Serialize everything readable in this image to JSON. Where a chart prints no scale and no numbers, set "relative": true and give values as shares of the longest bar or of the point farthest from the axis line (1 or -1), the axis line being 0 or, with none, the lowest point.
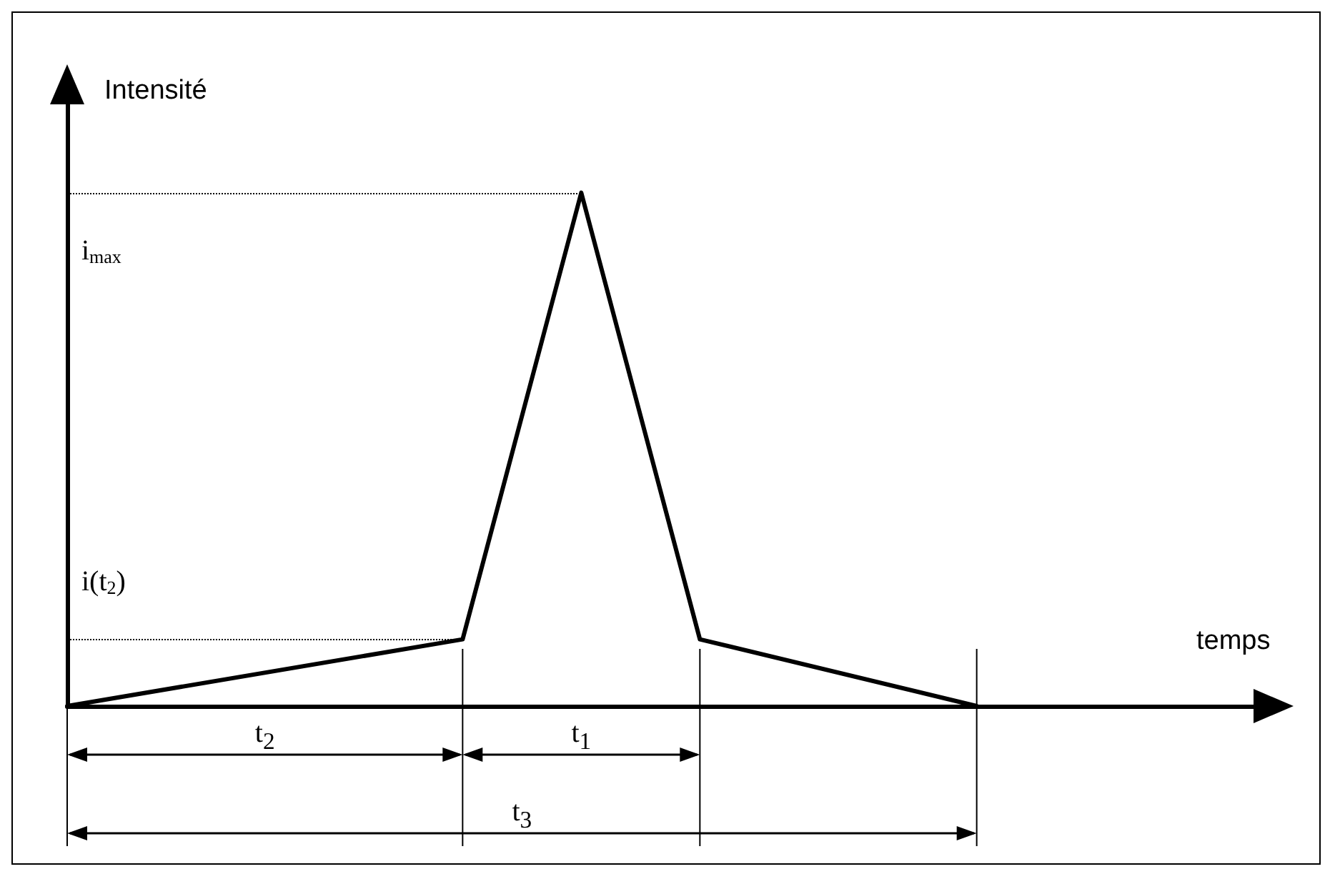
{
  "chart_data": {
    "type": "line",
    "relative": true,
    "xlabel": "temps",
    "ylabel": "Intensité",
    "color": "#000000",
    "marker": "none",
    "line_style": "solid",
    "grid": false,
    "categories": [
      null,
      null,
      null,
      null,
      null,
      null,
      null,
      null,
      null,
      null,
      null,
      null,
      null,
      null,
      null,
      null,
      null,
      null,
      null,
      null,
      null,
      null,
      null,
      null,
      null,
      null,
      null,
      null,
      null,
      null,
      null
    ],
    "values": [
      0,
      null,
      null,
      null,
      null,
      null,
      null,
      null,
      null,
      null,
      0.13,
      null,
      null,
      1,
      null,
      null,
      0.13,
      null,
      null,
      null,
      null,
      null,
      null,
      0,
      null,
      null,
      null,
      null,
      null,
      null,
      null
    ],
    "ref_lines": [
      {
        "axis": "y",
        "value": 1,
        "label": "i$_{max}$",
        "line_style": "dotted"
      },
      {
        "axis": "y",
        "value": 0.13,
        "label": "i(t$_{2}$)",
        "line_style": "dotted"
      }
    ],
    "annotations": [
      "t$_{2}$",
      "t$_{1}$",
      "t$_{3}$"
    ]
  }
}
